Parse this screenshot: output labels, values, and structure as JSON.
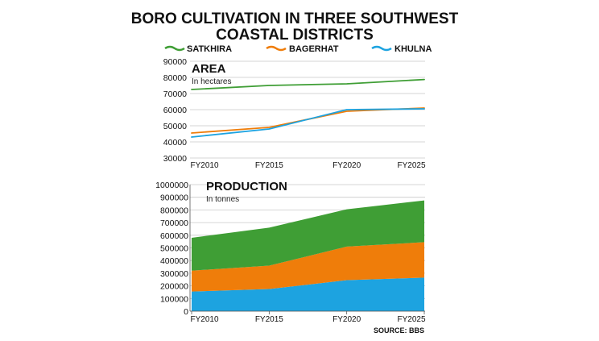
{
  "title_line1": "BORO CULTIVATION IN THREE SOUTHWEST",
  "title_line2": "COASTAL DISTRICTS",
  "legend": [
    {
      "label": "SATKHIRA",
      "color": "#3f9e35"
    },
    {
      "label": "BAGERHAT",
      "color": "#ef7d0a"
    },
    {
      "label": "KHULNA",
      "color": "#1da3e0"
    }
  ],
  "source": "SOURCE: BBS",
  "chart_data": [
    {
      "type": "line",
      "title": "AREA",
      "subtitle": "In hectares",
      "categories": [
        "FY2010",
        "FY2015",
        "FY2020",
        "FY2025"
      ],
      "ylim": [
        30000,
        90000
      ],
      "yticks": [
        "90000",
        "80000",
        "70000",
        "60000",
        "50000",
        "40000",
        "30000"
      ],
      "grid": true,
      "series": [
        {
          "name": "SATKHIRA",
          "color": "#3f9e35",
          "values": [
            72500,
            75000,
            76000,
            78700
          ]
        },
        {
          "name": "BAGERHAT",
          "color": "#ef7d0a",
          "values": [
            45500,
            49000,
            59000,
            61000
          ]
        },
        {
          "name": "KHULNA",
          "color": "#1da3e0",
          "values": [
            43000,
            48000,
            60000,
            60500
          ]
        }
      ]
    },
    {
      "type": "area",
      "stacked": true,
      "title": "PRODUCTION",
      "subtitle": "In tonnes",
      "categories": [
        "FY2010",
        "FY2015",
        "FY2020",
        "FY2025"
      ],
      "ylim": [
        0,
        1000000
      ],
      "yticks": [
        "1000000",
        "900000",
        "800000",
        "700000",
        "600000",
        "500000",
        "400000",
        "300000",
        "200000",
        "100000",
        "0"
      ],
      "grid": true,
      "series": [
        {
          "name": "KHULNA",
          "color": "#1da3e0",
          "values": [
            155000,
            175000,
            245000,
            265000
          ]
        },
        {
          "name": "BAGERHAT",
          "color": "#ef7d0a",
          "values": [
            165000,
            185000,
            265000,
            280000
          ]
        },
        {
          "name": "SATKHIRA",
          "color": "#3f9e35",
          "values": [
            260000,
            300000,
            295000,
            330000
          ]
        }
      ]
    }
  ]
}
